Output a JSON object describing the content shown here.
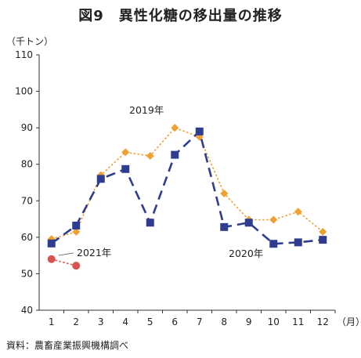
{
  "chart_data": {
    "type": "line",
    "title": "図9　異性化糖の移出量の推移",
    "unit_label": "（千トン）",
    "x_unit_label": "（月）",
    "source_note": "資料：農畜産業振興機構調べ",
    "categories": [
      "1",
      "2",
      "3",
      "4",
      "5",
      "6",
      "7",
      "8",
      "9",
      "10",
      "11",
      "12"
    ],
    "ylim": [
      40,
      110
    ],
    "yticks": [
      40,
      50,
      60,
      70,
      80,
      90,
      100,
      110
    ],
    "grid": false,
    "series": [
      {
        "name": "2019年",
        "color": "#F0A030",
        "marker": "diamond",
        "line": "dotted",
        "values": [
          59.5,
          61.5,
          77,
          83.3,
          82.3,
          90,
          87.5,
          72,
          64.8,
          64.8,
          67,
          61.5
        ]
      },
      {
        "name": "2020年",
        "color": "#2E3D8F",
        "marker": "square",
        "line": "long-dash",
        "values": [
          58.3,
          63.2,
          76,
          78.7,
          64,
          82.6,
          89,
          62.8,
          64,
          58.2,
          58.6,
          59.3
        ]
      },
      {
        "name": "2021年",
        "color": "#D9534F",
        "marker": "circle",
        "line": "dotted",
        "values": [
          54,
          52.2,
          null,
          null,
          null,
          null,
          null,
          null,
          null,
          null,
          null,
          null
        ]
      }
    ]
  }
}
